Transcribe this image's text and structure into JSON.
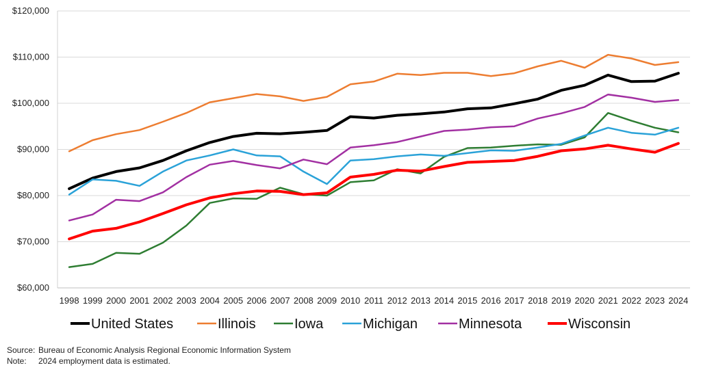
{
  "chart_data": {
    "type": "line",
    "title": "",
    "xlabel": "",
    "ylabel": "",
    "ylim": [
      60000,
      120000
    ],
    "y_ticks": [
      60000,
      70000,
      80000,
      90000,
      100000,
      110000,
      120000
    ],
    "y_tick_labels": [
      "$60,000",
      "$70,000",
      "$80,000",
      "$90,000",
      "$100,000",
      "$110,000",
      "$120,000"
    ],
    "grid": "horizontal",
    "legend": "bottom",
    "x": [
      "1998",
      "1999",
      "2000",
      "2001",
      "2002",
      "2003",
      "2004",
      "2005",
      "2006",
      "2007",
      "2008",
      "2009",
      "2010",
      "2011",
      "2012",
      "2013",
      "2014",
      "2015",
      "2016",
      "2017",
      "2018",
      "2019",
      "2020",
      "2021",
      "2022",
      "2023",
      "2024"
    ],
    "series": [
      {
        "name": "United States",
        "color": "#000000",
        "width": "thick",
        "values": [
          81500,
          83800,
          85200,
          86000,
          87600,
          89700,
          91500,
          92800,
          93500,
          93400,
          93700,
          94100,
          97100,
          96800,
          97400,
          97700,
          98100,
          98800,
          99000,
          99900,
          100900,
          102800,
          103900,
          106100,
          104700,
          104800,
          106500
        ]
      },
      {
        "name": "Illinois",
        "color": "#ed7d31",
        "width": "normal",
        "values": [
          89600,
          92000,
          93300,
          94200,
          96000,
          97900,
          100200,
          101100,
          102000,
          101500,
          100500,
          101400,
          104100,
          104700,
          106400,
          106100,
          106600,
          106600,
          105900,
          106500,
          108000,
          109200,
          107700,
          110500,
          109700,
          108300,
          108900
        ]
      },
      {
        "name": "Iowa",
        "color": "#2e7d32",
        "width": "normal",
        "values": [
          64500,
          65200,
          67600,
          67400,
          69800,
          73500,
          78400,
          79400,
          79300,
          81700,
          80300,
          80000,
          82900,
          83300,
          85700,
          84800,
          88400,
          90300,
          90400,
          90800,
          91100,
          91000,
          92600,
          97900,
          96200,
          94700,
          93700
        ]
      },
      {
        "name": "Michigan",
        "color": "#2aa2d8",
        "width": "normal",
        "values": [
          80200,
          83500,
          83200,
          82100,
          85200,
          87600,
          88700,
          90000,
          88700,
          88500,
          85200,
          82500,
          87600,
          87900,
          88500,
          88900,
          88600,
          89200,
          89800,
          89700,
          90400,
          91200,
          93000,
          94700,
          93600,
          93200,
          94700
        ]
      },
      {
        "name": "Minnesota",
        "color": "#a230a2",
        "width": "normal",
        "values": [
          74600,
          75900,
          79100,
          78800,
          80700,
          84000,
          86700,
          87500,
          86600,
          85900,
          87800,
          86800,
          90400,
          90900,
          91600,
          92800,
          94000,
          94300,
          94800,
          95000,
          96700,
          97800,
          99200,
          101900,
          101200,
          100300,
          100700
        ]
      },
      {
        "name": "Wisconsin",
        "color": "#ff0000",
        "width": "thick",
        "values": [
          70600,
          72300,
          72900,
          74300,
          76100,
          78000,
          79500,
          80400,
          81000,
          80900,
          80200,
          80600,
          84000,
          84600,
          85500,
          85300,
          86300,
          87200,
          87400,
          87600,
          88500,
          89700,
          90100,
          90900,
          90100,
          89400,
          91300
        ]
      }
    ]
  },
  "footnotes": {
    "source_label": "Source:",
    "source_text": "Bureau of Economic Analysis Regional Economic Information System",
    "note_label": "Note:",
    "note_text": "2024 employment data is estimated."
  }
}
